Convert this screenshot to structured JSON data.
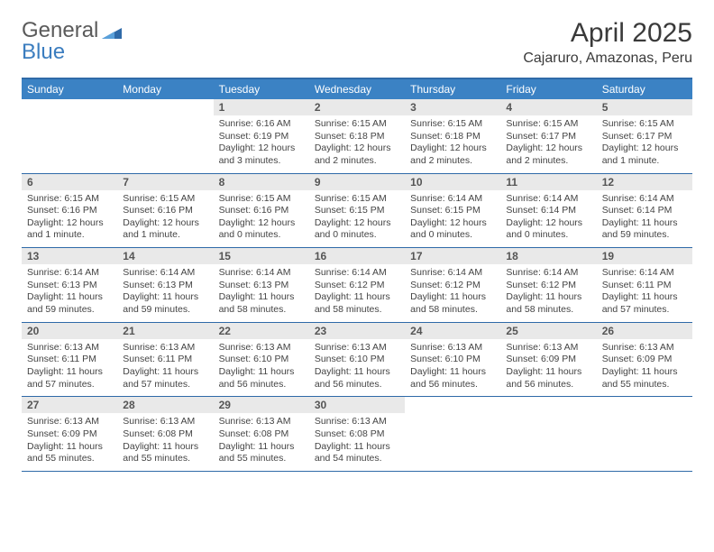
{
  "logo": {
    "word1": "General",
    "word2": "Blue"
  },
  "title": "April 2025",
  "location": "Cajaruro, Amazonas, Peru",
  "colors": {
    "header_bg": "#3b82c4",
    "header_text": "#ffffff",
    "border": "#2f6aa8",
    "daynum_bg": "#e9e9e9",
    "logo_gray": "#5a5a5a",
    "logo_blue": "#3b7dbf"
  },
  "weekdays": [
    "Sunday",
    "Monday",
    "Tuesday",
    "Wednesday",
    "Thursday",
    "Friday",
    "Saturday"
  ],
  "weeks": [
    [
      {
        "n": "",
        "sr": "",
        "ss": "",
        "dl": ""
      },
      {
        "n": "",
        "sr": "",
        "ss": "",
        "dl": ""
      },
      {
        "n": "1",
        "sr": "Sunrise: 6:16 AM",
        "ss": "Sunset: 6:19 PM",
        "dl": "Daylight: 12 hours and 3 minutes."
      },
      {
        "n": "2",
        "sr": "Sunrise: 6:15 AM",
        "ss": "Sunset: 6:18 PM",
        "dl": "Daylight: 12 hours and 2 minutes."
      },
      {
        "n": "3",
        "sr": "Sunrise: 6:15 AM",
        "ss": "Sunset: 6:18 PM",
        "dl": "Daylight: 12 hours and 2 minutes."
      },
      {
        "n": "4",
        "sr": "Sunrise: 6:15 AM",
        "ss": "Sunset: 6:17 PM",
        "dl": "Daylight: 12 hours and 2 minutes."
      },
      {
        "n": "5",
        "sr": "Sunrise: 6:15 AM",
        "ss": "Sunset: 6:17 PM",
        "dl": "Daylight: 12 hours and 1 minute."
      }
    ],
    [
      {
        "n": "6",
        "sr": "Sunrise: 6:15 AM",
        "ss": "Sunset: 6:16 PM",
        "dl": "Daylight: 12 hours and 1 minute."
      },
      {
        "n": "7",
        "sr": "Sunrise: 6:15 AM",
        "ss": "Sunset: 6:16 PM",
        "dl": "Daylight: 12 hours and 1 minute."
      },
      {
        "n": "8",
        "sr": "Sunrise: 6:15 AM",
        "ss": "Sunset: 6:16 PM",
        "dl": "Daylight: 12 hours and 0 minutes."
      },
      {
        "n": "9",
        "sr": "Sunrise: 6:15 AM",
        "ss": "Sunset: 6:15 PM",
        "dl": "Daylight: 12 hours and 0 minutes."
      },
      {
        "n": "10",
        "sr": "Sunrise: 6:14 AM",
        "ss": "Sunset: 6:15 PM",
        "dl": "Daylight: 12 hours and 0 minutes."
      },
      {
        "n": "11",
        "sr": "Sunrise: 6:14 AM",
        "ss": "Sunset: 6:14 PM",
        "dl": "Daylight: 12 hours and 0 minutes."
      },
      {
        "n": "12",
        "sr": "Sunrise: 6:14 AM",
        "ss": "Sunset: 6:14 PM",
        "dl": "Daylight: 11 hours and 59 minutes."
      }
    ],
    [
      {
        "n": "13",
        "sr": "Sunrise: 6:14 AM",
        "ss": "Sunset: 6:13 PM",
        "dl": "Daylight: 11 hours and 59 minutes."
      },
      {
        "n": "14",
        "sr": "Sunrise: 6:14 AM",
        "ss": "Sunset: 6:13 PM",
        "dl": "Daylight: 11 hours and 59 minutes."
      },
      {
        "n": "15",
        "sr": "Sunrise: 6:14 AM",
        "ss": "Sunset: 6:13 PM",
        "dl": "Daylight: 11 hours and 58 minutes."
      },
      {
        "n": "16",
        "sr": "Sunrise: 6:14 AM",
        "ss": "Sunset: 6:12 PM",
        "dl": "Daylight: 11 hours and 58 minutes."
      },
      {
        "n": "17",
        "sr": "Sunrise: 6:14 AM",
        "ss": "Sunset: 6:12 PM",
        "dl": "Daylight: 11 hours and 58 minutes."
      },
      {
        "n": "18",
        "sr": "Sunrise: 6:14 AM",
        "ss": "Sunset: 6:12 PM",
        "dl": "Daylight: 11 hours and 58 minutes."
      },
      {
        "n": "19",
        "sr": "Sunrise: 6:14 AM",
        "ss": "Sunset: 6:11 PM",
        "dl": "Daylight: 11 hours and 57 minutes."
      }
    ],
    [
      {
        "n": "20",
        "sr": "Sunrise: 6:13 AM",
        "ss": "Sunset: 6:11 PM",
        "dl": "Daylight: 11 hours and 57 minutes."
      },
      {
        "n": "21",
        "sr": "Sunrise: 6:13 AM",
        "ss": "Sunset: 6:11 PM",
        "dl": "Daylight: 11 hours and 57 minutes."
      },
      {
        "n": "22",
        "sr": "Sunrise: 6:13 AM",
        "ss": "Sunset: 6:10 PM",
        "dl": "Daylight: 11 hours and 56 minutes."
      },
      {
        "n": "23",
        "sr": "Sunrise: 6:13 AM",
        "ss": "Sunset: 6:10 PM",
        "dl": "Daylight: 11 hours and 56 minutes."
      },
      {
        "n": "24",
        "sr": "Sunrise: 6:13 AM",
        "ss": "Sunset: 6:10 PM",
        "dl": "Daylight: 11 hours and 56 minutes."
      },
      {
        "n": "25",
        "sr": "Sunrise: 6:13 AM",
        "ss": "Sunset: 6:09 PM",
        "dl": "Daylight: 11 hours and 56 minutes."
      },
      {
        "n": "26",
        "sr": "Sunrise: 6:13 AM",
        "ss": "Sunset: 6:09 PM",
        "dl": "Daylight: 11 hours and 55 minutes."
      }
    ],
    [
      {
        "n": "27",
        "sr": "Sunrise: 6:13 AM",
        "ss": "Sunset: 6:09 PM",
        "dl": "Daylight: 11 hours and 55 minutes."
      },
      {
        "n": "28",
        "sr": "Sunrise: 6:13 AM",
        "ss": "Sunset: 6:08 PM",
        "dl": "Daylight: 11 hours and 55 minutes."
      },
      {
        "n": "29",
        "sr": "Sunrise: 6:13 AM",
        "ss": "Sunset: 6:08 PM",
        "dl": "Daylight: 11 hours and 55 minutes."
      },
      {
        "n": "30",
        "sr": "Sunrise: 6:13 AM",
        "ss": "Sunset: 6:08 PM",
        "dl": "Daylight: 11 hours and 54 minutes."
      },
      {
        "n": "",
        "sr": "",
        "ss": "",
        "dl": ""
      },
      {
        "n": "",
        "sr": "",
        "ss": "",
        "dl": ""
      },
      {
        "n": "",
        "sr": "",
        "ss": "",
        "dl": ""
      }
    ]
  ]
}
